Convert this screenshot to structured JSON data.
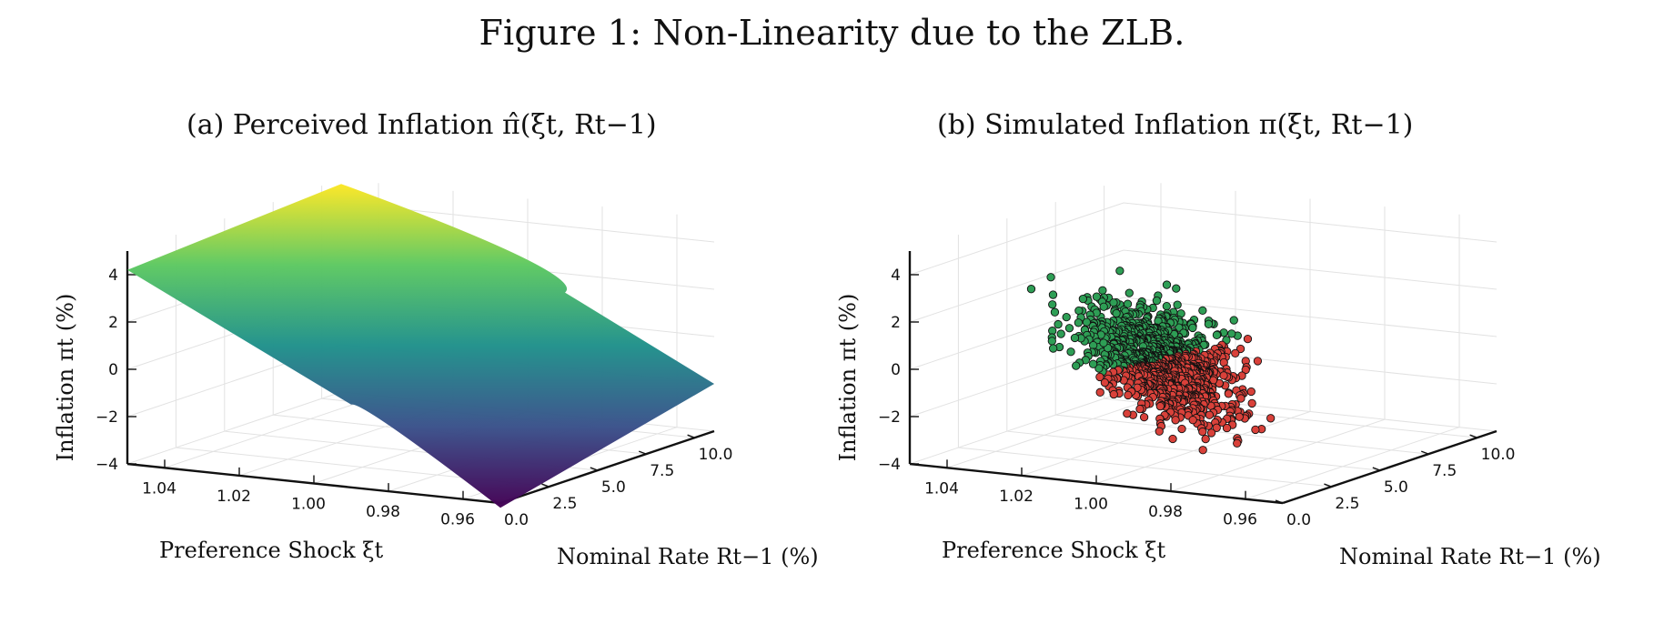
{
  "figure_title": "Figure 1: Non-Linearity due to the ZLB.",
  "chart_data": [
    {
      "type": "surface",
      "title": "(a) Perceived Inflation π̂(ξt, Rt−1)",
      "xlabel": "Preference Shock ξt",
      "ylabel": "Nominal Rate Rt−1 (%)",
      "zlabel": "Inflation πt (%)",
      "x_ticks": [
        "1.04",
        "1.02",
        "1.00",
        "0.98",
        "0.96"
      ],
      "y_ticks": [
        "0.0",
        "2.5",
        "5.0",
        "7.5",
        "10.0"
      ],
      "z_ticks": [
        "4",
        "2",
        "0",
        "−2",
        "−4"
      ],
      "xlim": [
        0.95,
        1.05
      ],
      "ylim": [
        0,
        11
      ],
      "zlim": [
        -4,
        5
      ],
      "colormap": [
        "#440154",
        "#3b528b",
        "#21918c",
        "#5ec962",
        "#fde725"
      ],
      "surface_corners": [
        {
          "x": 1.05,
          "y": 0,
          "z": 4.2
        },
        {
          "x": 1.05,
          "y": 11,
          "z": 4.8
        },
        {
          "x": 0.95,
          "y": 0,
          "z": -4.2
        },
        {
          "x": 0.95,
          "y": 11,
          "z": -2.0
        }
      ],
      "kink": {
        "x": 0.99,
        "y_low": 0,
        "z_low": -0.5,
        "y_high": 11,
        "z_high": 1.2
      }
    },
    {
      "type": "scatter",
      "title": "(b) Simulated Inflation π(ξt, Rt−1)",
      "xlabel": "Preference Shock ξt",
      "ylabel": "Nominal Rate Rt−1 (%)",
      "zlabel": "Inflation πt (%)",
      "x_ticks": [
        "1.04",
        "1.02",
        "1.00",
        "0.98",
        "0.96"
      ],
      "y_ticks": [
        "0.0",
        "2.5",
        "5.0",
        "7.5",
        "10.0"
      ],
      "z_ticks": [
        "4",
        "2",
        "0",
        "−2",
        "−4"
      ],
      "xlim": [
        0.95,
        1.05
      ],
      "ylim": [
        0,
        11
      ],
      "zlim": [
        -4,
        5
      ],
      "series": [
        {
          "color": "#2e9e55"
        },
        {
          "color": "#d9413a"
        }
      ]
    }
  ]
}
